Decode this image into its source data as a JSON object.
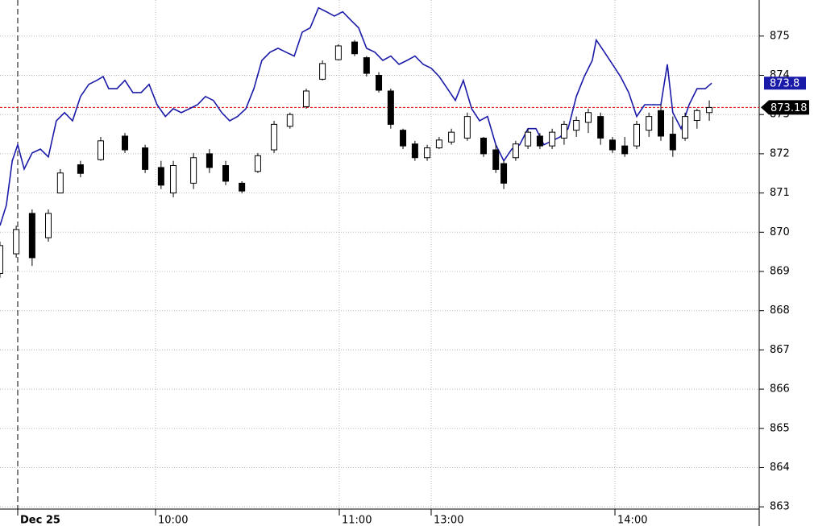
{
  "chart_data": {
    "type": "candlestick",
    "color": "#000000",
    "up_fill": "#ffffff",
    "x": [
      -5.8,
      -0.5,
      4.7,
      10,
      13.9,
      20.5,
      27.1,
      35,
      41.6,
      46.8,
      50.8,
      57.4,
      62.6,
      67.9,
      73.2,
      78.4,
      83.7,
      88.9,
      94.2,
      99.5,
      104.7,
      110,
      113.9,
      117.9,
      121.8,
      125.8,
      129.7,
      133.7,
      137.6,
      141.6,
      146.8,
      152.1,
      156.1,
      158.7,
      162.6,
      166.6,
      170.5,
      174.5,
      178.4,
      182.4,
      186.3,
      190.3,
      194.2,
      198.2,
      202.1,
      206.1,
      210,
      213.9,
      217.9,
      221.8,
      225.8
    ],
    "open": [
      868.95,
      869.45,
      870.48,
      869.86,
      871.0,
      871.72,
      871.85,
      872.45,
      872.15,
      871.65,
      871.0,
      871.25,
      872.0,
      871.7,
      871.25,
      871.55,
      872.1,
      872.7,
      873.2,
      873.9,
      874.4,
      874.85,
      874.45,
      874.0,
      873.6,
      872.6,
      872.25,
      871.9,
      872.15,
      872.3,
      872.4,
      872.4,
      872.1,
      871.75,
      871.9,
      872.2,
      872.45,
      872.2,
      872.4,
      872.6,
      872.8,
      872.95,
      872.35,
      872.2,
      872.2,
      872.6,
      873.1,
      872.5,
      872.4,
      872.85,
      873.05
    ],
    "high": [
      869.76,
      870.17,
      870.58,
      870.58,
      871.61,
      871.82,
      872.43,
      872.53,
      872.23,
      871.82,
      871.82,
      872.02,
      872.12,
      871.82,
      871.3,
      872.02,
      872.84,
      873.05,
      873.66,
      874.38,
      874.79,
      874.9,
      874.49,
      874.08,
      873.66,
      872.64,
      872.33,
      872.23,
      872.43,
      872.64,
      873.05,
      872.43,
      872.23,
      871.82,
      872.33,
      872.64,
      872.53,
      872.64,
      872.84,
      872.95,
      873.15,
      873.05,
      872.43,
      872.43,
      872.84,
      873.05,
      873.25,
      872.95,
      873.05,
      873.15,
      873.36
    ],
    "low": [
      868.84,
      869.35,
      869.14,
      869.76,
      870.99,
      871.4,
      871.82,
      872.02,
      871.51,
      871.1,
      870.89,
      871.1,
      871.51,
      871.2,
      870.99,
      871.51,
      872.02,
      872.64,
      873.15,
      873.87,
      874.38,
      874.49,
      873.97,
      873.56,
      872.64,
      872.12,
      871.82,
      871.82,
      872.12,
      872.23,
      872.33,
      871.92,
      871.51,
      871.1,
      871.82,
      872.12,
      872.12,
      872.12,
      872.23,
      872.43,
      872.53,
      872.23,
      872.02,
      871.92,
      872.12,
      872.43,
      872.33,
      871.92,
      872.33,
      872.64,
      872.84
    ],
    "close": [
      869.66,
      870.07,
      869.35,
      870.48,
      871.51,
      871.5,
      872.33,
      872.1,
      871.6,
      871.2,
      871.7,
      871.9,
      871.65,
      871.3,
      871.05,
      871.95,
      872.75,
      873.0,
      873.6,
      874.3,
      874.75,
      874.55,
      874.05,
      873.62,
      872.75,
      872.2,
      871.9,
      872.15,
      872.35,
      872.55,
      872.95,
      872.0,
      871.6,
      871.25,
      872.25,
      872.55,
      872.2,
      872.55,
      872.75,
      872.85,
      873.05,
      872.4,
      872.1,
      872.0,
      872.75,
      872.95,
      872.45,
      872.1,
      872.95,
      873.1,
      873.18
    ],
    "last_line_color": "#e00000",
    "line": {
      "type": "line",
      "color": "#1a1aa8",
      "x": [
        -5.8,
        -3.7,
        -1.8,
        0,
        2.1,
        4.7,
        7.4,
        10,
        12.6,
        15.3,
        17.9,
        20.5,
        23.2,
        25.8,
        27.9,
        29.7,
        32.4,
        35,
        37.6,
        40.3,
        42.9,
        45.5,
        48.2,
        50.8,
        53.4,
        56.1,
        58.7,
        61.3,
        63.9,
        66.6,
        69.2,
        71.8,
        74.5,
        77.1,
        79.7,
        82.4,
        85,
        87.6,
        90.3,
        92.9,
        95.5,
        98.2,
        100.8,
        103.4,
        106.1,
        108.7,
        111.3,
        113.9,
        116.6,
        119.2,
        121.8,
        124.5,
        127.1,
        129.7,
        132.4,
        135,
        137.6,
        140.3,
        142.9,
        145.5,
        148.2,
        150.8,
        153.4,
        156.1,
        158.7,
        161.3,
        163.9,
        166.6,
        169.2,
        171.8,
        174.5,
        177.1,
        179.7,
        182.4,
        185,
        187.6,
        188.9,
        191.6,
        194.2,
        196.8,
        199.5,
        202.1,
        204.7,
        207.4,
        210,
        212.1,
        213.9,
        216.6,
        219.2,
        221.8,
        224.5,
        226.6
      ],
      "values": [
        870.17,
        870.69,
        871.82,
        872.23,
        871.61,
        872.02,
        872.12,
        871.92,
        872.84,
        873.05,
        872.84,
        873.46,
        873.77,
        873.87,
        873.97,
        873.66,
        873.66,
        873.87,
        873.56,
        873.56,
        873.77,
        873.25,
        872.95,
        873.15,
        873.05,
        873.15,
        873.25,
        873.46,
        873.36,
        873.05,
        872.84,
        872.95,
        873.15,
        873.66,
        874.38,
        874.59,
        874.69,
        874.59,
        874.49,
        875.1,
        875.21,
        875.72,
        875.62,
        875.51,
        875.62,
        875.41,
        875.21,
        874.69,
        874.59,
        874.38,
        874.49,
        874.28,
        874.38,
        874.49,
        874.28,
        874.18,
        873.97,
        873.66,
        873.36,
        873.87,
        873.15,
        872.84,
        872.95,
        872.23,
        871.82,
        872.12,
        872.23,
        872.64,
        872.64,
        872.23,
        872.33,
        872.43,
        872.64,
        873.46,
        873.97,
        874.38,
        874.9,
        874.59,
        874.28,
        873.97,
        873.56,
        872.95,
        873.25,
        873.25,
        873.25,
        874.28,
        873.05,
        872.64,
        873.25,
        873.66,
        873.66,
        873.8
      ]
    },
    "xlim": [
      -5.79,
      242.1
    ],
    "xticks": [
      {
        "value": 0,
        "label": "Dec 25"
      },
      {
        "value": 45,
        "label": "10:00"
      },
      {
        "value": 105,
        "label": "11:00"
      },
      {
        "value": 135,
        "label": "13:00"
      },
      {
        "value": 195,
        "label": "14:00"
      }
    ],
    "ylim": [
      862.86,
      875.92
    ],
    "yticks": [
      863,
      864,
      865,
      866,
      867,
      868,
      869,
      870,
      871,
      872,
      873,
      874,
      875
    ],
    "grid": true
  }
}
